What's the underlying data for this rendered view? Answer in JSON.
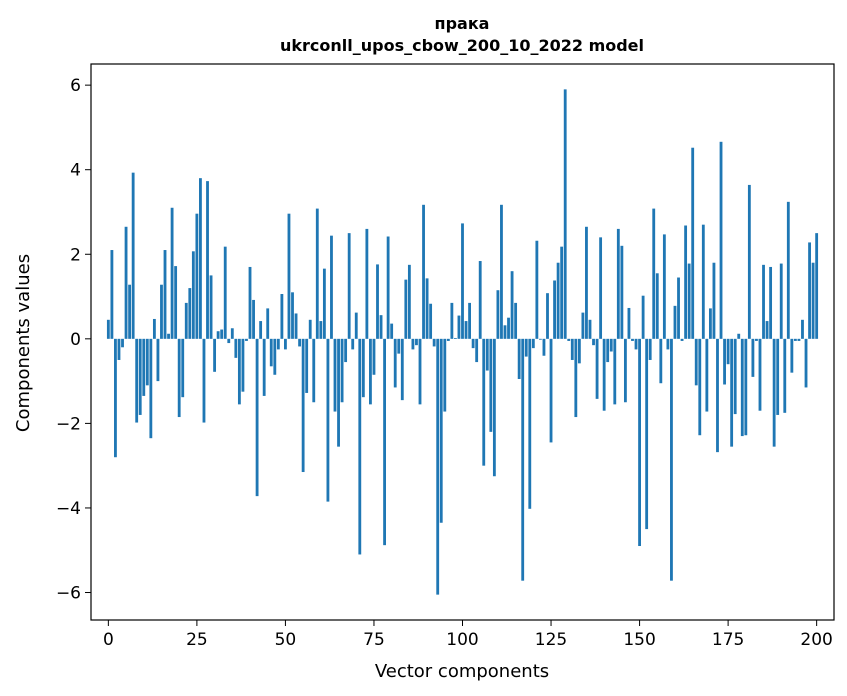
{
  "chart_data": {
    "type": "bar",
    "title_line1": "прака",
    "title_line2": "ukrconll_upos_cbow_200_10_2022 model",
    "xlabel": "Vector components",
    "ylabel": "Components values",
    "xlim": [
      -4.9,
      204.9
    ],
    "ylim": [
      -6.65,
      6.5
    ],
    "xticks": [
      0,
      25,
      50,
      75,
      100,
      125,
      150,
      175,
      200
    ],
    "xtick_labels": [
      "0",
      "25",
      "50",
      "75",
      "100",
      "125",
      "150",
      "175",
      "200"
    ],
    "yticks": [
      -6,
      -4,
      -2,
      0,
      2,
      4,
      6
    ],
    "ytick_labels": [
      "−6",
      "−4",
      "−2",
      "0",
      "2",
      "4",
      "6"
    ],
    "bar_color": "#1f77b4",
    "grid": false,
    "values": [
      0.45,
      2.1,
      -2.8,
      -0.5,
      -0.2,
      2.65,
      1.28,
      3.93,
      -1.98,
      -1.8,
      -1.35,
      -1.1,
      -2.35,
      0.47,
      -1.0,
      1.28,
      2.1,
      0.12,
      3.1,
      1.72,
      -1.85,
      -1.38,
      0.85,
      1.2,
      2.07,
      2.96,
      3.8,
      -1.98,
      3.73,
      1.5,
      -0.78,
      0.18,
      0.22,
      2.18,
      -0.1,
      0.25,
      -0.45,
      -1.55,
      -1.25,
      -0.05,
      1.7,
      0.92,
      -3.72,
      0.42,
      -1.35,
      0.72,
      -0.65,
      -0.85,
      -0.25,
      1.06,
      -0.25,
      2.96,
      1.1,
      0.6,
      -0.18,
      -3.15,
      -1.28,
      0.45,
      -1.5,
      3.08,
      0.42,
      1.66,
      -3.85,
      2.44,
      -1.72,
      -2.55,
      -1.5,
      -0.55,
      2.5,
      -0.25,
      0.62,
      -5.1,
      -1.38,
      2.6,
      -1.55,
      -0.85,
      1.76,
      0.56,
      -4.88,
      2.42,
      0.36,
      -1.15,
      -0.35,
      -1.45,
      1.4,
      1.75,
      -0.25,
      -0.15,
      -1.55,
      3.17,
      1.43,
      0.83,
      -0.18,
      -6.05,
      -4.35,
      -1.72,
      -0.05,
      0.85,
      0.02,
      0.55,
      2.73,
      0.42,
      0.85,
      -0.22,
      -0.55,
      1.84,
      -3.0,
      -0.75,
      -2.2,
      -3.25,
      1.15,
      3.17,
      0.32,
      0.5,
      1.6,
      0.85,
      -0.95,
      -5.72,
      -0.42,
      -4.02,
      -0.22,
      2.32,
      -0.02,
      -0.4,
      1.08,
      -2.45,
      1.38,
      1.8,
      2.18,
      5.9,
      -0.05,
      -0.5,
      -1.85,
      -0.58,
      0.62,
      2.65,
      0.45,
      -0.15,
      -1.42,
      2.4,
      -1.7,
      -0.55,
      -0.3,
      -1.55,
      2.6,
      2.2,
      -1.5,
      0.73,
      -0.05,
      -0.25,
      -4.9,
      1.02,
      -4.5,
      -0.5,
      3.08,
      1.55,
      -1.05,
      2.47,
      -0.25,
      -5.72,
      0.78,
      1.45,
      -0.05,
      2.68,
      1.78,
      4.52,
      -1.1,
      -2.28,
      2.7,
      -1.72,
      0.72,
      1.8,
      -2.68,
      4.66,
      -1.08,
      -0.6,
      -2.55,
      -1.78,
      0.12,
      -2.3,
      -2.28,
      3.64,
      -0.9,
      -0.05,
      -1.7,
      1.75,
      0.42,
      1.7,
      -2.55,
      -1.8,
      1.78,
      -1.75,
      3.24,
      -0.8,
      -0.05,
      -0.05,
      0.45,
      -1.15,
      2.28,
      1.8,
      2.5
    ]
  }
}
